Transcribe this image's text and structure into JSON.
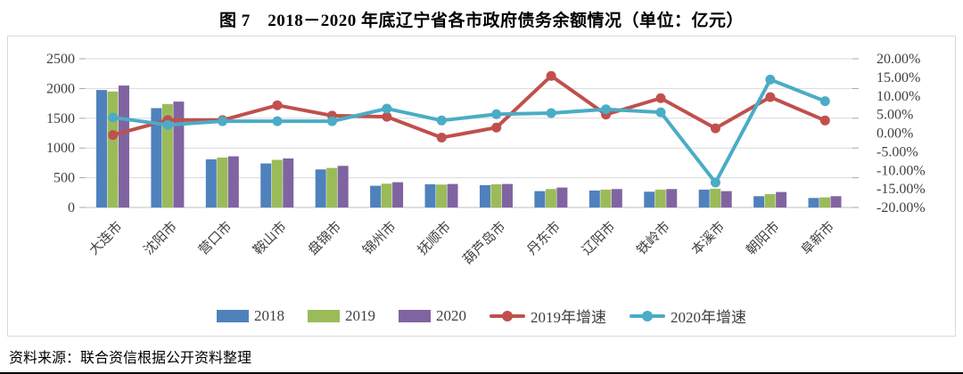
{
  "title": "图 7　2018－2020 年底辽宁省各市政府债务余额情况（单位：亿元）",
  "source": "资料来源：联合资信根据公开资料整理",
  "chart_data": {
    "type": "bar",
    "subtype": "grouped-bars-with-lines-combo",
    "title": "图 7　2018－2020 年底辽宁省各市政府债务余额情况（单位：亿元）",
    "categories": [
      "大连市",
      "沈阳市",
      "营口市",
      "鞍山市",
      "盘锦市",
      "锦州市",
      "抚顺市",
      "葫芦岛市",
      "丹东市",
      "辽阳市",
      "铁岭市",
      "本溪市",
      "朝阳市",
      "阜新市"
    ],
    "series": [
      {
        "name": "2018",
        "type": "bar",
        "axis": "left",
        "color": "#4f81bd",
        "values": [
          1975,
          1670,
          810,
          740,
          640,
          365,
          390,
          375,
          275,
          285,
          265,
          300,
          190,
          160
        ]
      },
      {
        "name": "2019",
        "type": "bar",
        "axis": "left",
        "color": "#9bbb59",
        "values": [
          1950,
          1740,
          840,
          800,
          665,
          400,
          385,
          390,
          310,
          300,
          300,
          315,
          225,
          170
        ]
      },
      {
        "name": "2020",
        "type": "bar",
        "axis": "left",
        "color": "#8064a2",
        "values": [
          2050,
          1780,
          860,
          825,
          700,
          425,
          395,
          395,
          335,
          310,
          310,
          275,
          260,
          190
        ]
      },
      {
        "name": "2019年增速",
        "type": "line",
        "axis": "right",
        "color": "#c0504d",
        "values": [
          -0.5,
          3.5,
          3.5,
          7.5,
          4.7,
          4.4,
          -1.2,
          1.5,
          15.4,
          5.0,
          9.4,
          1.3,
          9.7,
          3.4
        ]
      },
      {
        "name": "2020年增速",
        "type": "line",
        "axis": "right",
        "color": "#4bacc6",
        "values": [
          4.2,
          2.2,
          3.2,
          3.2,
          3.2,
          6.6,
          3.4,
          5.1,
          5.4,
          6.4,
          5.6,
          -13.3,
          14.4,
          8.6
        ]
      }
    ],
    "left_axis": {
      "min": 0,
      "max": 2500,
      "step": 500,
      "ticks": [
        "0",
        "500",
        "1000",
        "1500",
        "2000",
        "2500"
      ]
    },
    "right_axis": {
      "min": -20,
      "max": 20,
      "step": 5,
      "ticks": [
        "20.00%",
        "15.00%",
        "10.00%",
        "5.00%",
        "0.00%",
        "-5.00%",
        "-10.00%",
        "-15.00%",
        "-20.00%"
      ]
    },
    "legend_position": "bottom",
    "grid": true,
    "gridline_color": "#d9d9d9",
    "axis_text_color": "#404040"
  }
}
